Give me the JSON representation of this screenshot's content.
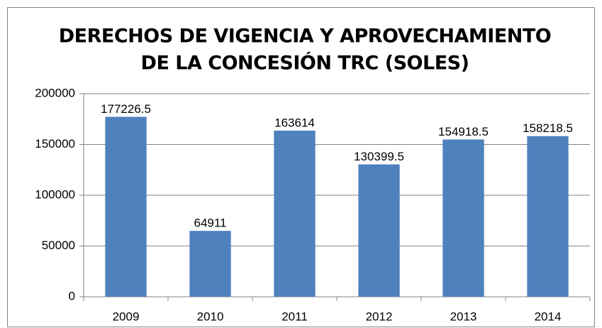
{
  "chart_data": {
    "type": "bar",
    "title": [
      "DERECHOS DE VIGENCIA Y APROVECHAMIENTO",
      "DE LA CONCESIÓN TRC (SOLES)"
    ],
    "categories": [
      "2009",
      "2010",
      "2011",
      "2012",
      "2013",
      "2014"
    ],
    "values": [
      177226.5,
      64911,
      163614,
      130399.5,
      154918.5,
      158218.5
    ],
    "color": "#4f81bd",
    "ylim": [
      0,
      200000
    ],
    "yticks": [
      0,
      50000,
      100000,
      150000,
      200000
    ],
    "grid": true
  }
}
